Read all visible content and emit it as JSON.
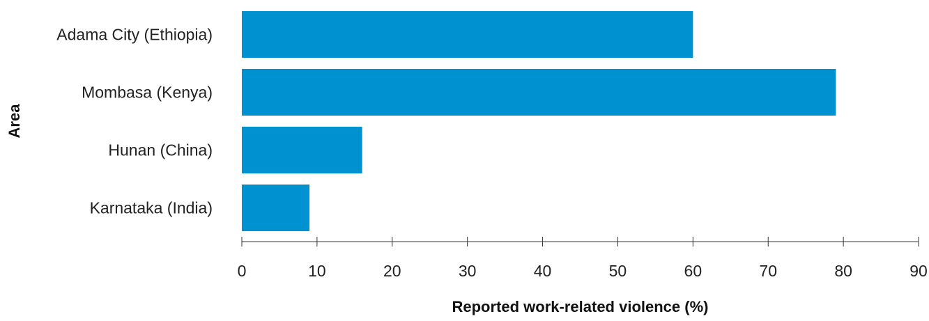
{
  "chart_data": {
    "type": "bar",
    "orientation": "horizontal",
    "categories": [
      "Adama City (Ethiopia)",
      "Mombasa (Kenya)",
      "Hunan (China)",
      "Karnataka (India)"
    ],
    "values": [
      60,
      79,
      16,
      9
    ],
    "xlabel": "Reported work-related violence (%)",
    "ylabel": "Area",
    "xlim": [
      0,
      90
    ],
    "xticks": [
      0,
      10,
      20,
      30,
      40,
      50,
      60,
      70,
      80,
      90
    ],
    "grid": false,
    "bar_color": "#0092d0"
  }
}
